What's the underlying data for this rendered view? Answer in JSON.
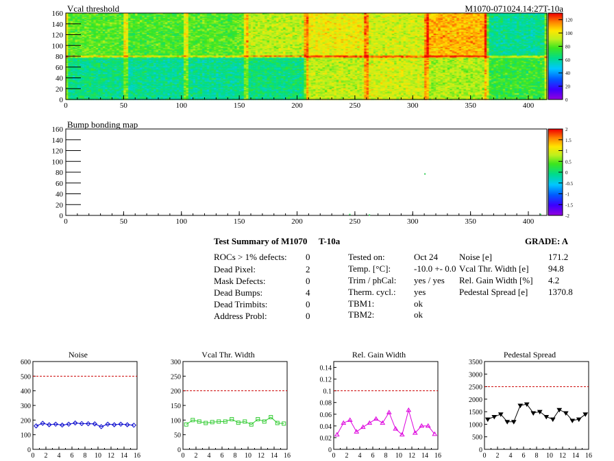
{
  "top_map": {
    "title": "Vcal threshold",
    "module_id": "M1070-071024.14:27T-10a",
    "x_ticks": [
      "0",
      "50",
      "100",
      "150",
      "200",
      "250",
      "300",
      "350",
      "400"
    ],
    "y_ticks": [
      "0",
      "20",
      "40",
      "60",
      "80",
      "100",
      "120",
      "140",
      "160"
    ],
    "z_ticks": [
      "0",
      "20",
      "40",
      "60",
      "80",
      "100",
      "120"
    ]
  },
  "bump_map": {
    "title": "Bump bonding map",
    "x_ticks": [
      "0",
      "50",
      "100",
      "150",
      "200",
      "250",
      "300",
      "350",
      "400"
    ],
    "y_ticks": [
      "0",
      "20",
      "40",
      "60",
      "80",
      "100",
      "120",
      "140",
      "160"
    ],
    "z_ticks": [
      "-2",
      "-1.5",
      "-1",
      "-0.5",
      "0",
      "0.5",
      "1",
      "1.5",
      "2"
    ]
  },
  "summary": {
    "title": "Test Summary of M1070",
    "subtitle": "T-10a",
    "grade": "GRADE:  A",
    "defects": [
      {
        "label": "ROCs > 1% defects:",
        "value": "0"
      },
      {
        "label": "Dead Pixel:",
        "value": "2"
      },
      {
        "label": "Mask Defects:",
        "value": "0"
      },
      {
        "label": "Dead Bumps:",
        "value": "4"
      },
      {
        "label": "Dead Trimbits:",
        "value": "0"
      },
      {
        "label": "Address Probl:",
        "value": "0"
      }
    ],
    "conditions": [
      {
        "label": "Tested on:",
        "value": "Oct 24"
      },
      {
        "label": "Temp. [°C]:",
        "value": "-10.0 +- 0.0"
      },
      {
        "label": "Trim / phCal:",
        "value": "yes / yes"
      },
      {
        "label": "Therm. cycl.:",
        "value": "yes"
      },
      {
        "label": "TBM1:",
        "value": "ok"
      },
      {
        "label": "TBM2:",
        "value": "ok"
      }
    ],
    "results": [
      {
        "label": "Noise [e]",
        "value": "171.2"
      },
      {
        "label": "Vcal Thr. Width [e]",
        "value": "94.8"
      },
      {
        "label": "Rel. Gain Width [%]",
        "value": "4.2"
      },
      {
        "label": "Pedestal Spread [e]",
        "value": "1370.8"
      }
    ]
  },
  "chart_data": [
    {
      "type": "heatmap",
      "title": "Vcal threshold",
      "xlim": [
        0,
        416
      ],
      "ylim": [
        0,
        160
      ],
      "zlim": [
        0,
        130
      ],
      "roc_grid": {
        "columns": 8,
        "rows": 2,
        "col_width": 52,
        "row_height": 80
      },
      "roc_mean_top": [
        80,
        78,
        80,
        92,
        100,
        95,
        110,
        62
      ],
      "roc_mean_bottom": [
        64,
        62,
        62,
        65,
        92,
        95,
        90,
        75
      ]
    },
    {
      "type": "heatmap",
      "title": "Bump bonding map",
      "xlim": [
        0,
        416
      ],
      "ylim": [
        0,
        160
      ],
      "zlim": [
        -2,
        2
      ],
      "dead_bumps": [
        [
          245,
          3
        ],
        [
          262,
          2
        ],
        [
          310,
          78
        ],
        [
          410,
          3
        ]
      ]
    },
    {
      "type": "scatter",
      "title": "Noise",
      "x": [
        0,
        1,
        2,
        3,
        4,
        5,
        6,
        7,
        8,
        9,
        10,
        11,
        12,
        13,
        14,
        15
      ],
      "values": [
        160,
        178,
        168,
        172,
        166,
        172,
        180,
        176,
        175,
        174,
        155,
        172,
        168,
        172,
        168,
        165
      ],
      "xlim": [
        0,
        16
      ],
      "ylim": [
        0,
        600
      ],
      "y_ticks": [
        0,
        100,
        200,
        300,
        400,
        500,
        600
      ],
      "x_ticks": [
        0,
        2,
        4,
        6,
        8,
        10,
        12,
        14,
        16
      ],
      "limit": 500,
      "color": "#0000cc",
      "marker": "diamond"
    },
    {
      "type": "scatter",
      "title": "Vcal Thr. Width",
      "x": [
        0,
        1,
        2,
        3,
        4,
        5,
        6,
        7,
        8,
        9,
        10,
        11,
        12,
        13,
        14,
        15
      ],
      "values": [
        85,
        100,
        95,
        90,
        93,
        95,
        95,
        103,
        91,
        95,
        85,
        103,
        95,
        110,
        90,
        88
      ],
      "xlim": [
        0,
        16
      ],
      "ylim": [
        0,
        300
      ],
      "y_ticks": [
        0,
        50,
        100,
        150,
        200,
        250,
        300
      ],
      "x_ticks": [
        0,
        2,
        4,
        6,
        8,
        10,
        12,
        14,
        16
      ],
      "limit": 200,
      "color": "#33cc33",
      "marker": "square"
    },
    {
      "type": "scatter",
      "title": "Rel. Gain Width",
      "x": [
        0,
        1,
        2,
        3,
        4,
        5,
        6,
        7,
        8,
        9,
        10,
        11,
        12,
        13,
        14,
        15
      ],
      "values": [
        0.025,
        0.045,
        0.05,
        0.03,
        0.038,
        0.045,
        0.052,
        0.045,
        0.063,
        0.035,
        0.025,
        0.067,
        0.028,
        0.04,
        0.04,
        0.026
      ],
      "xlim": [
        0,
        16
      ],
      "ylim": [
        0,
        0.15
      ],
      "y_ticks": [
        0,
        0.02,
        0.04,
        0.06,
        0.08,
        0.1,
        0.12,
        0.14
      ],
      "y_tick_labels": [
        "0",
        "0.02",
        "0.04",
        "0.06",
        "0.08",
        "0.1",
        "0.12",
        "0.14"
      ],
      "x_ticks": [
        0,
        2,
        4,
        6,
        8,
        10,
        12,
        14,
        16
      ],
      "limit": 0.1,
      "color": "#dd00dd",
      "marker": "triangle"
    },
    {
      "type": "scatter",
      "title": "Pedestal Spread",
      "x": [
        0,
        1,
        2,
        3,
        4,
        5,
        6,
        7,
        8,
        9,
        10,
        11,
        12,
        13,
        14,
        15
      ],
      "values": [
        1200,
        1300,
        1400,
        1100,
        1100,
        1750,
        1800,
        1450,
        1500,
        1300,
        1200,
        1580,
        1450,
        1150,
        1200,
        1400
      ],
      "xlim": [
        0,
        16
      ],
      "ylim": [
        0,
        3500
      ],
      "y_ticks": [
        0,
        500,
        1000,
        1500,
        2000,
        2500,
        3000,
        3500
      ],
      "x_ticks": [
        0,
        2,
        4,
        6,
        8,
        10,
        12,
        14,
        16
      ],
      "limit": 2500,
      "color": "#000000",
      "marker": "triangle-down"
    }
  ]
}
